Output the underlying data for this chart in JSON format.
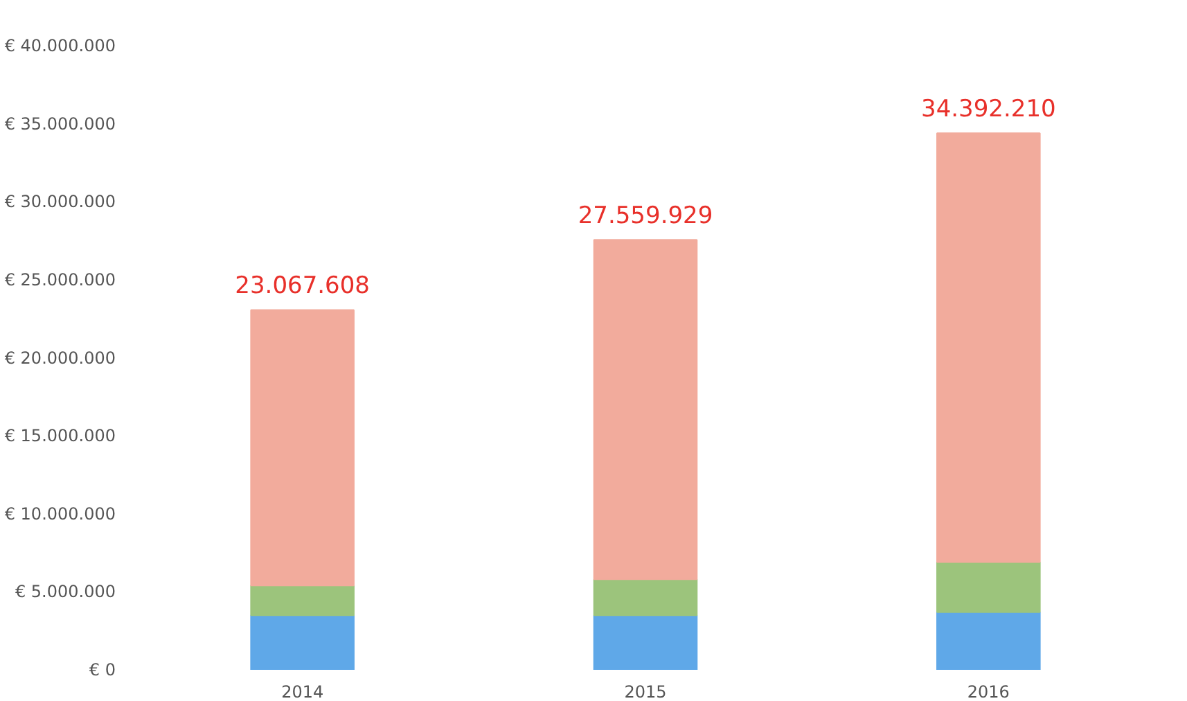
{
  "chart_data": {
    "type": "bar",
    "stacked": true,
    "categories": [
      "2014",
      "2015",
      "2016"
    ],
    "series": [
      {
        "color": "#5fa8e8",
        "values": [
          3500000,
          3500000,
          3700000
        ]
      },
      {
        "color": "#9cc47c",
        "values": [
          1900000,
          2300000,
          3200000
        ]
      },
      {
        "color": "#f2ab9c",
        "values": [
          17667608,
          21759929,
          27492210
        ]
      }
    ],
    "totals": [
      "23.067.608",
      "27.559.929",
      "34.392.210"
    ],
    "ylim": [
      0,
      40000000
    ],
    "yticks": [
      {
        "value": 0,
        "label": "€ 0"
      },
      {
        "value": 5000000,
        "label": "€ 5.000.000"
      },
      {
        "value": 10000000,
        "label": "€ 10.000.000"
      },
      {
        "value": 15000000,
        "label": "€ 15.000.000"
      },
      {
        "value": 20000000,
        "label": "€ 20.000.000"
      },
      {
        "value": 25000000,
        "label": "€ 25.000.000"
      },
      {
        "value": 30000000,
        "label": "€ 30.000.000"
      },
      {
        "value": 35000000,
        "label": "€ 35.000.000"
      },
      {
        "value": 40000000,
        "label": "€ 40.000.000"
      }
    ],
    "grid": false
  }
}
